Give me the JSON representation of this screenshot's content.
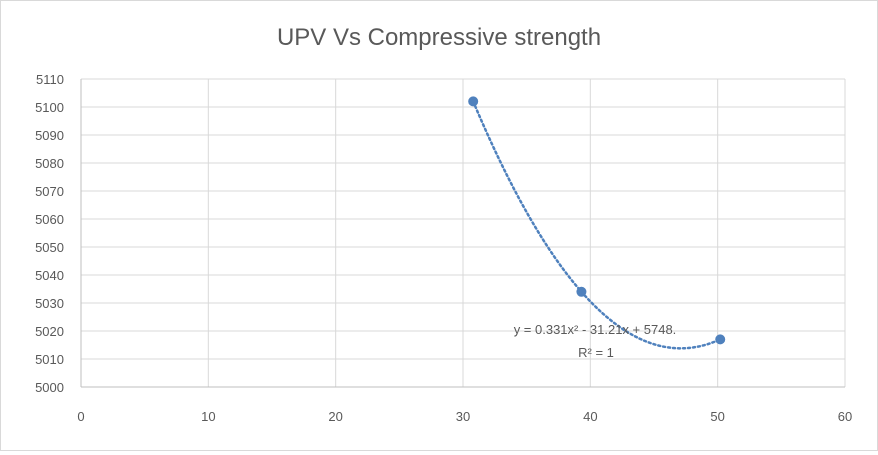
{
  "chart_data": {
    "type": "scatter",
    "title": "UPV Vs Compressive strength",
    "xlabel": "",
    "ylabel": "",
    "xlim": [
      0,
      60
    ],
    "ylim": [
      5000,
      5110
    ],
    "x_ticks": [
      "0",
      "10",
      "20",
      "30",
      "40",
      "50",
      "60"
    ],
    "y_ticks": [
      "5000",
      "5010",
      "5020",
      "5030",
      "5040",
      "5050",
      "5060",
      "5070",
      "5080",
      "5090",
      "5100",
      "5110"
    ],
    "series": [
      {
        "points": [
          {
            "x": 30.8,
            "y": 5102
          },
          {
            "x": 39.3,
            "y": 5034
          },
          {
            "x": 50.2,
            "y": 5017
          }
        ],
        "color": "#4f81bd"
      }
    ],
    "trendline": {
      "type": "polynomial",
      "order": 2,
      "color": "#4f81bd",
      "style": "dotted",
      "equation": "y = 0.331x² - 31.21x + 5748.",
      "r_squared": "R² = 1"
    },
    "grid": {
      "horizontal": true,
      "vertical": true,
      "color": "#d9d9d9"
    },
    "legend": "none"
  }
}
